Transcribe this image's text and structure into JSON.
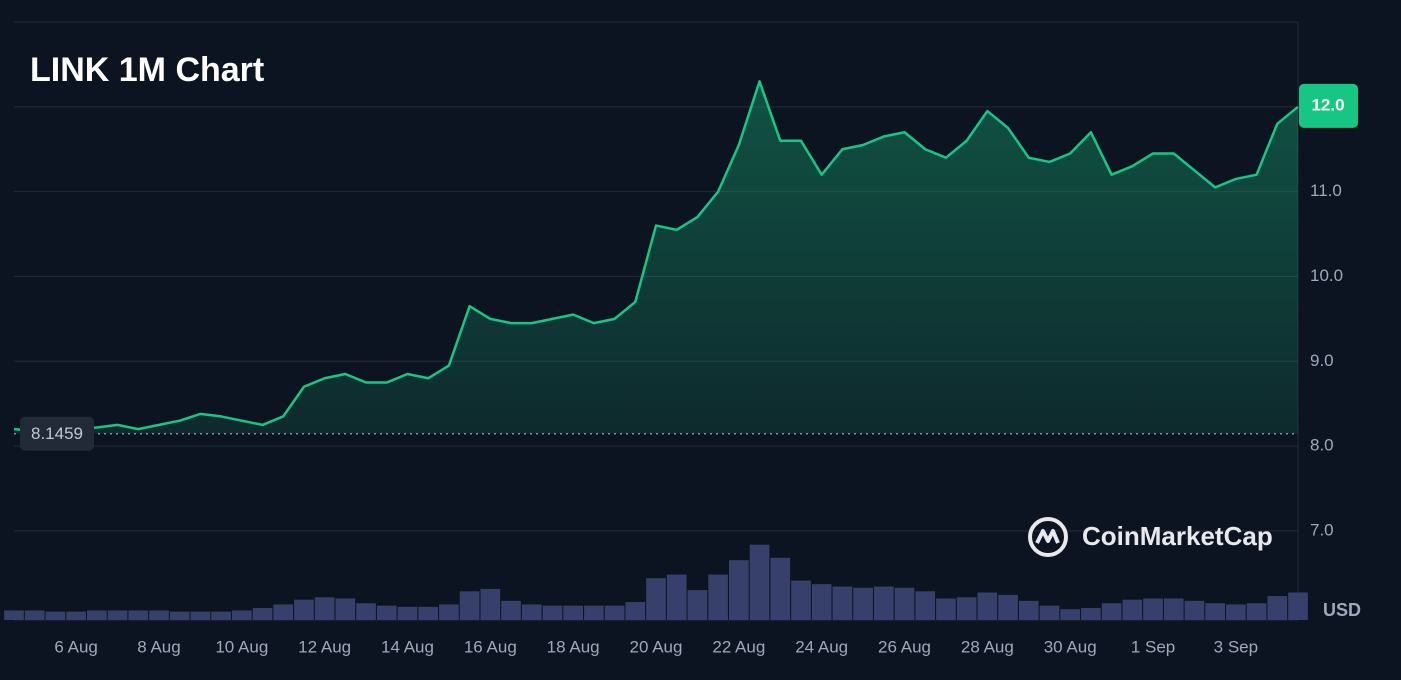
{
  "chart_data": {
    "type": "line",
    "title": "LINK 1M Chart",
    "watermark": "CoinMarketCap",
    "unit": "USD",
    "xlim": [
      0,
      62
    ],
    "xticks": [
      {
        "value": 3,
        "label": "6 Aug"
      },
      {
        "value": 7,
        "label": "8 Aug"
      },
      {
        "value": 11,
        "label": "10 Aug"
      },
      {
        "value": 15,
        "label": "12 Aug"
      },
      {
        "value": 19,
        "label": "14 Aug"
      },
      {
        "value": 23,
        "label": "16 Aug"
      },
      {
        "value": 27,
        "label": "18 Aug"
      },
      {
        "value": 31,
        "label": "20 Aug"
      },
      {
        "value": 35,
        "label": "22 Aug"
      },
      {
        "value": 39,
        "label": "24 Aug"
      },
      {
        "value": 43,
        "label": "26 Aug"
      },
      {
        "value": 47,
        "label": "28 Aug"
      },
      {
        "value": 51,
        "label": "30 Aug"
      },
      {
        "value": 55,
        "label": "1 Sep"
      },
      {
        "value": 59,
        "label": "3 Sep"
      }
    ],
    "ylim": [
      5.95,
      13.0
    ],
    "yticks": [
      {
        "value": 7,
        "label": "7.0"
      },
      {
        "value": 8,
        "label": "8.0"
      },
      {
        "value": 9,
        "label": "9.0"
      },
      {
        "value": 10,
        "label": "10.0"
      },
      {
        "value": 11,
        "label": "11.0"
      },
      {
        "value": 12,
        "label": "12.0"
      }
    ],
    "y2lim": [
      0,
      50
    ],
    "grid": true,
    "reference": 8.1459,
    "last_price": {
      "value": 12.0,
      "label": "12.0"
    },
    "series": [
      {
        "name": "Price",
        "color": "#16c784",
        "down_color": "#ea3943",
        "values": [
          8.2,
          8.18,
          8.15,
          8.2,
          8.22,
          8.25,
          8.2,
          8.25,
          8.3,
          8.38,
          8.35,
          8.3,
          8.25,
          8.35,
          8.7,
          8.8,
          8.85,
          8.75,
          8.75,
          8.85,
          8.8,
          8.95,
          9.65,
          9.5,
          9.45,
          9.45,
          9.5,
          9.55,
          9.45,
          9.5,
          9.7,
          10.6,
          10.55,
          10.7,
          11.0,
          11.55,
          12.3,
          11.6,
          11.6,
          11.2,
          11.5,
          11.55,
          11.65,
          11.7,
          11.5,
          11.4,
          11.6,
          11.95,
          11.75,
          11.4,
          11.35,
          11.45,
          11.7,
          11.2,
          11.3,
          11.45,
          11.45,
          11.25,
          11.05,
          11.15,
          11.2,
          11.8,
          12.0
        ]
      },
      {
        "name": "Volume",
        "color": "#36406b",
        "axis": "y2",
        "values": [
          0.8,
          0.8,
          0.7,
          0.7,
          0.8,
          0.8,
          0.8,
          0.8,
          0.7,
          0.7,
          0.7,
          0.8,
          1.0,
          1.3,
          1.7,
          1.9,
          1.8,
          1.4,
          1.2,
          1.1,
          1.1,
          1.3,
          2.4,
          2.6,
          1.6,
          1.3,
          1.2,
          1.2,
          1.2,
          1.2,
          1.5,
          3.5,
          3.8,
          2.5,
          3.8,
          5.0,
          6.3,
          5.2,
          3.3,
          3.0,
          2.8,
          2.7,
          2.8,
          2.7,
          2.4,
          1.8,
          1.9,
          2.3,
          2.1,
          1.6,
          1.2,
          0.9,
          1.0,
          1.4,
          1.7,
          1.8,
          1.8,
          1.6,
          1.4,
          1.3,
          1.4,
          2.0,
          2.3
        ]
      }
    ]
  }
}
